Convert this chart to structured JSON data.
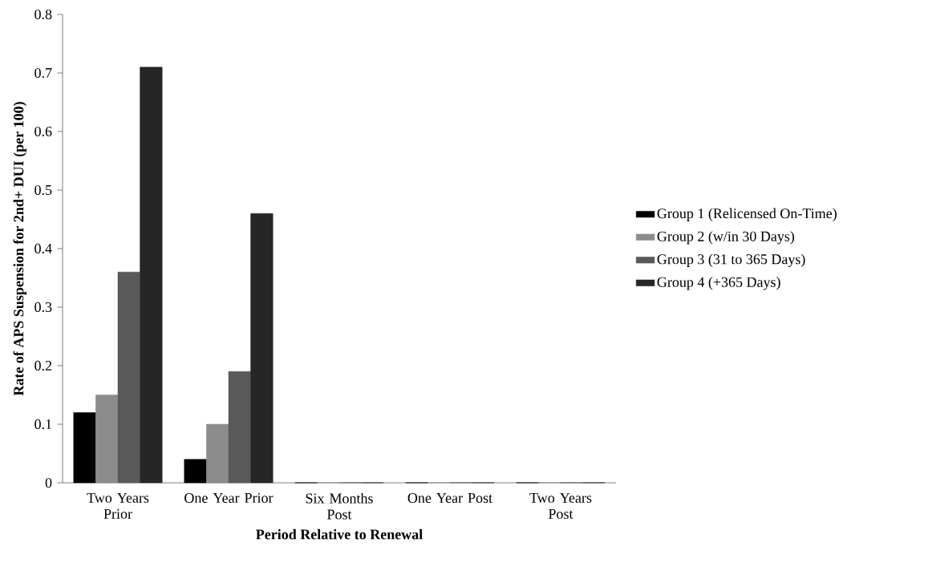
{
  "chart_data": {
    "type": "bar",
    "xlabel": "Period Relative to Renewal",
    "ylabel": "Rate of APS Suspension for 2nd+ DUI (per 100)",
    "categories": [
      "Two Years Prior",
      "One Year Prior",
      "Six Months Post",
      "One Year Post",
      "Two Years Post"
    ],
    "series": [
      {
        "name": "Group 1 (Relicensed On-Time)",
        "color": "#000000",
        "values": [
          0.12,
          0.04,
          0,
          0,
          0
        ]
      },
      {
        "name": "Group 2 (w/in 30 Days)",
        "color": "#8c8c8c",
        "values": [
          0.15,
          0.1,
          0,
          0,
          0
        ]
      },
      {
        "name": "Group 3 (31 to 365 Days)",
        "color": "#595959",
        "values": [
          0.36,
          0.19,
          0,
          0,
          0
        ]
      },
      {
        "name": "Group 4 (+365 Days)",
        "color": "#262626",
        "values": [
          0.71,
          0.46,
          0,
          0,
          0
        ]
      }
    ],
    "ylim": [
      0,
      0.8
    ],
    "yticks": [
      0,
      0.1,
      0.2,
      0.3,
      0.4,
      0.5,
      0.6,
      0.7,
      0.8
    ],
    "grid": false,
    "legend": "right"
  }
}
